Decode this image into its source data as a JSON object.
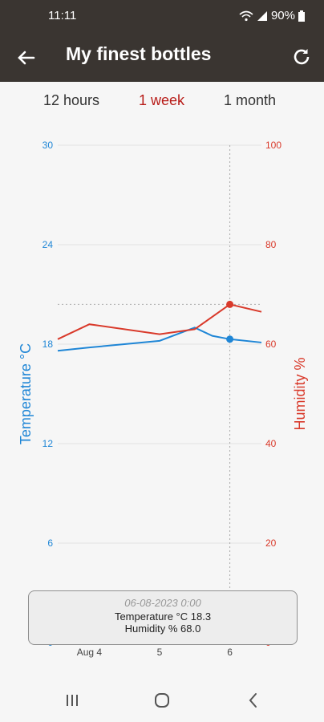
{
  "status": {
    "time": "11:11",
    "battery": "90%"
  },
  "app_bar": {
    "title": "My finest bottles",
    "back_icon": "arrow-left-icon",
    "refresh_icon": "refresh-icon"
  },
  "tabs": [
    {
      "label": "12 hours",
      "active": false
    },
    {
      "label": "1 week",
      "active": true
    },
    {
      "label": "1 month",
      "active": false
    }
  ],
  "colors": {
    "temperature": "#1f86d6",
    "humidity": "#d93a2b",
    "active_tab": "#b81c18",
    "app_bar": "#3a3531"
  },
  "tooltip": {
    "date": "06-08-2023 0:00",
    "temperature_line": "Temperature °C 18.3",
    "humidity_line": "Humidity % 68.0"
  },
  "chart_data": {
    "type": "line",
    "x_ticks": [
      {
        "label": "Aug 4",
        "day": 4
      },
      {
        "label": "5",
        "day": 5
      },
      {
        "label": "6",
        "day": 6
      }
    ],
    "x_range": [
      3.55,
      6.45
    ],
    "y_left": {
      "label": "Temperature °C",
      "ticks": [
        0,
        6,
        12,
        18,
        24,
        30
      ],
      "range": [
        0,
        30
      ]
    },
    "y_right": {
      "label": "Humidity %",
      "ticks": [
        0,
        20,
        40,
        60,
        80,
        100
      ],
      "range": [
        0,
        100
      ]
    },
    "series": [
      {
        "name": "Temperature °C",
        "axis": "left",
        "x": [
          3.55,
          4.0,
          4.5,
          5.0,
          5.5,
          5.75,
          6.0,
          6.45
        ],
        "y": [
          17.6,
          17.8,
          18.0,
          18.2,
          19.0,
          18.5,
          18.3,
          18.1
        ]
      },
      {
        "name": "Humidity %",
        "axis": "right",
        "x": [
          3.55,
          4.0,
          5.0,
          5.5,
          6.0,
          6.45
        ],
        "y": [
          61.0,
          64.0,
          62.0,
          63.0,
          68.0,
          66.5
        ]
      }
    ],
    "highlight": {
      "x": 6.0,
      "temperature": 18.3,
      "humidity": 68.0
    },
    "grid": true
  },
  "nav": {
    "recents_icon": "recents-icon",
    "home_icon": "home-icon",
    "back_icon": "nav-back-icon"
  }
}
